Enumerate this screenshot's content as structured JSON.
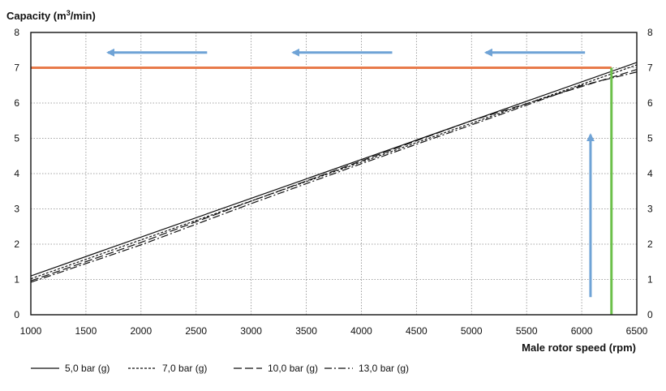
{
  "chart_data": {
    "type": "line",
    "title": "Capacity (m³/min)",
    "ylabel_main": "Capacity (m",
    "ylabel_sup": "3",
    "ylabel_end": "/min)",
    "xlabel": "Male rotor speed (rpm)",
    "xlim": [
      1000,
      6500
    ],
    "ylim": [
      0,
      8
    ],
    "x_ticks": [
      "1000",
      "1500",
      "2000",
      "2500",
      "3000",
      "3500",
      "4000",
      "4500",
      "5000",
      "5500",
      "6000",
      "6500"
    ],
    "y_ticks": [
      "0",
      "1",
      "2",
      "3",
      "4",
      "5",
      "6",
      "7",
      "8"
    ],
    "grid": true,
    "legend_position": "bottom",
    "series": [
      {
        "name": "5,0 bar (g)",
        "style": "solid",
        "x": [
          1000,
          6500
        ],
        "y": [
          1.1,
          7.15
        ]
      },
      {
        "name": "7,0 bar (g)",
        "style": "dotted",
        "x": [
          1000,
          6500
        ],
        "y": [
          1.02,
          7.08
        ]
      },
      {
        "name": "10,0 bar (g)",
        "style": "dashed",
        "x": [
          1000,
          2000,
          3000,
          4000,
          5000,
          6500
        ],
        "y": [
          0.96,
          2.05,
          3.22,
          4.36,
          5.5,
          6.95
        ]
      },
      {
        "name": "13,0 bar (g)",
        "style": "dashdot",
        "x": [
          1000,
          2000,
          3000,
          4000,
          5000,
          6000,
          6500
        ],
        "y": [
          0.92,
          1.98,
          3.15,
          4.28,
          5.38,
          6.5,
          6.88
        ]
      }
    ],
    "annotations": {
      "target_capacity": {
        "y": 7.0,
        "color": "#e87a4a"
      },
      "target_speed": {
        "x": 6270,
        "color": "#6cc04a"
      },
      "arrow_color": "#6fa3d6",
      "left_arrows": [
        {
          "x_start": 2600,
          "x_end": 1700,
          "y": 7.43
        },
        {
          "x_start": 4280,
          "x_end": 3380,
          "y": 7.43
        },
        {
          "x_start": 6030,
          "x_end": 5130,
          "y": 7.43
        }
      ],
      "up_arrow": {
        "x": 6080,
        "y_start": 0.5,
        "y_end": 5.1
      }
    }
  }
}
